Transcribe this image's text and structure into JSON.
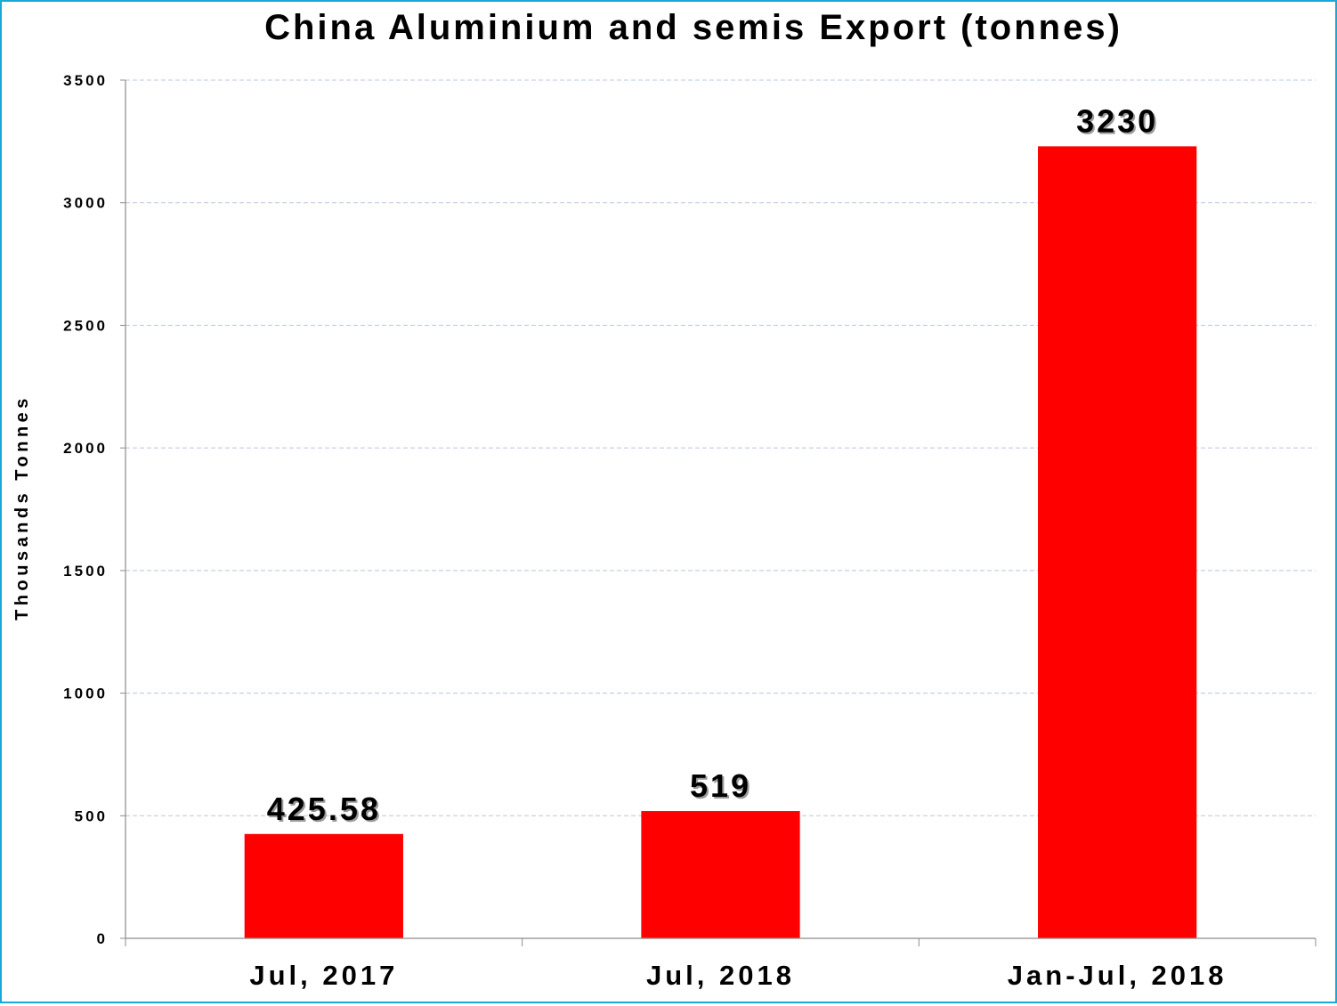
{
  "chart_data": {
    "type": "bar",
    "title": "China Aluminium and semis Export (tonnes)",
    "xlabel": "",
    "ylabel": "Thousands Tonnes",
    "categories": [
      "Jul, 2017",
      "Jul, 2018",
      "Jan-Jul, 2018"
    ],
    "values": [
      425.58,
      519,
      3230
    ],
    "data_labels": [
      "425.58",
      "519",
      "3230"
    ],
    "ylim": [
      0,
      3500
    ],
    "yticks": [
      0,
      500,
      1000,
      1500,
      2000,
      2500,
      3000,
      3500
    ],
    "ytick_labels": [
      "0",
      "500",
      "1000",
      "1500",
      "2000",
      "2500",
      "3000",
      "3500"
    ],
    "grid": true,
    "legend": "none",
    "colors": {
      "bar": "#ff0000",
      "grid": "#b8c8e0",
      "axis": "#8c8c8c",
      "border": "#1aa8d8"
    }
  }
}
